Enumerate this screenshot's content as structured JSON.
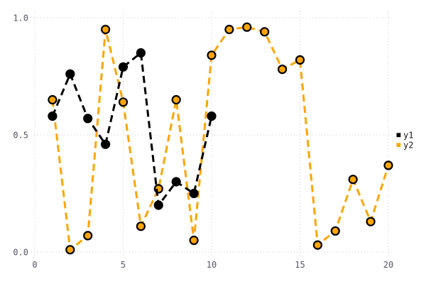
{
  "chart_data": {
    "type": "line",
    "title": "",
    "xlabel": "",
    "ylabel": "",
    "xlim": [
      0,
      20
    ],
    "ylim": [
      0.0,
      1.0
    ],
    "grid": true,
    "grid_style": "dotted",
    "legend_position": "right-outside",
    "x_ticks": [
      0,
      5,
      10,
      15,
      20
    ],
    "x_tick_labels": [
      "0",
      "5",
      "10",
      "15",
      "20"
    ],
    "y_ticks": [
      0.0,
      0.5,
      1.0
    ],
    "y_tick_labels": [
      "0.0",
      "0.5",
      "1.0"
    ],
    "series": [
      {
        "name": "y1",
        "color": "#000000",
        "line_style": "dashed",
        "marker": "circle",
        "marker_edge_color": "#000000",
        "x": [
          1,
          2,
          3,
          4,
          5,
          6,
          7,
          8,
          9,
          10
        ],
        "y": [
          0.58,
          0.76,
          0.57,
          0.46,
          0.79,
          0.85,
          0.2,
          0.3,
          0.25,
          0.58
        ]
      },
      {
        "name": "y2",
        "color": "#ffa500",
        "line_style": "dashed",
        "marker": "circle",
        "marker_edge_color": "#000000",
        "x": [
          1,
          2,
          3,
          4,
          5,
          6,
          7,
          8,
          9,
          10,
          11,
          12,
          13,
          14,
          15,
          16,
          17,
          18,
          19,
          20
        ],
        "y": [
          0.65,
          0.01,
          0.07,
          0.95,
          0.64,
          0.11,
          0.27,
          0.65,
          0.05,
          0.84,
          0.95,
          0.96,
          0.94,
          0.78,
          0.82,
          0.03,
          0.09,
          0.31,
          0.13,
          0.37
        ]
      }
    ],
    "colors": {
      "background": "#ffffff",
      "grid": "#d9d9e6",
      "tick_label": "#565666",
      "legend_text": "#1a1a1a",
      "series_y1": "#000000",
      "series_y2": "#ffa500"
    }
  }
}
